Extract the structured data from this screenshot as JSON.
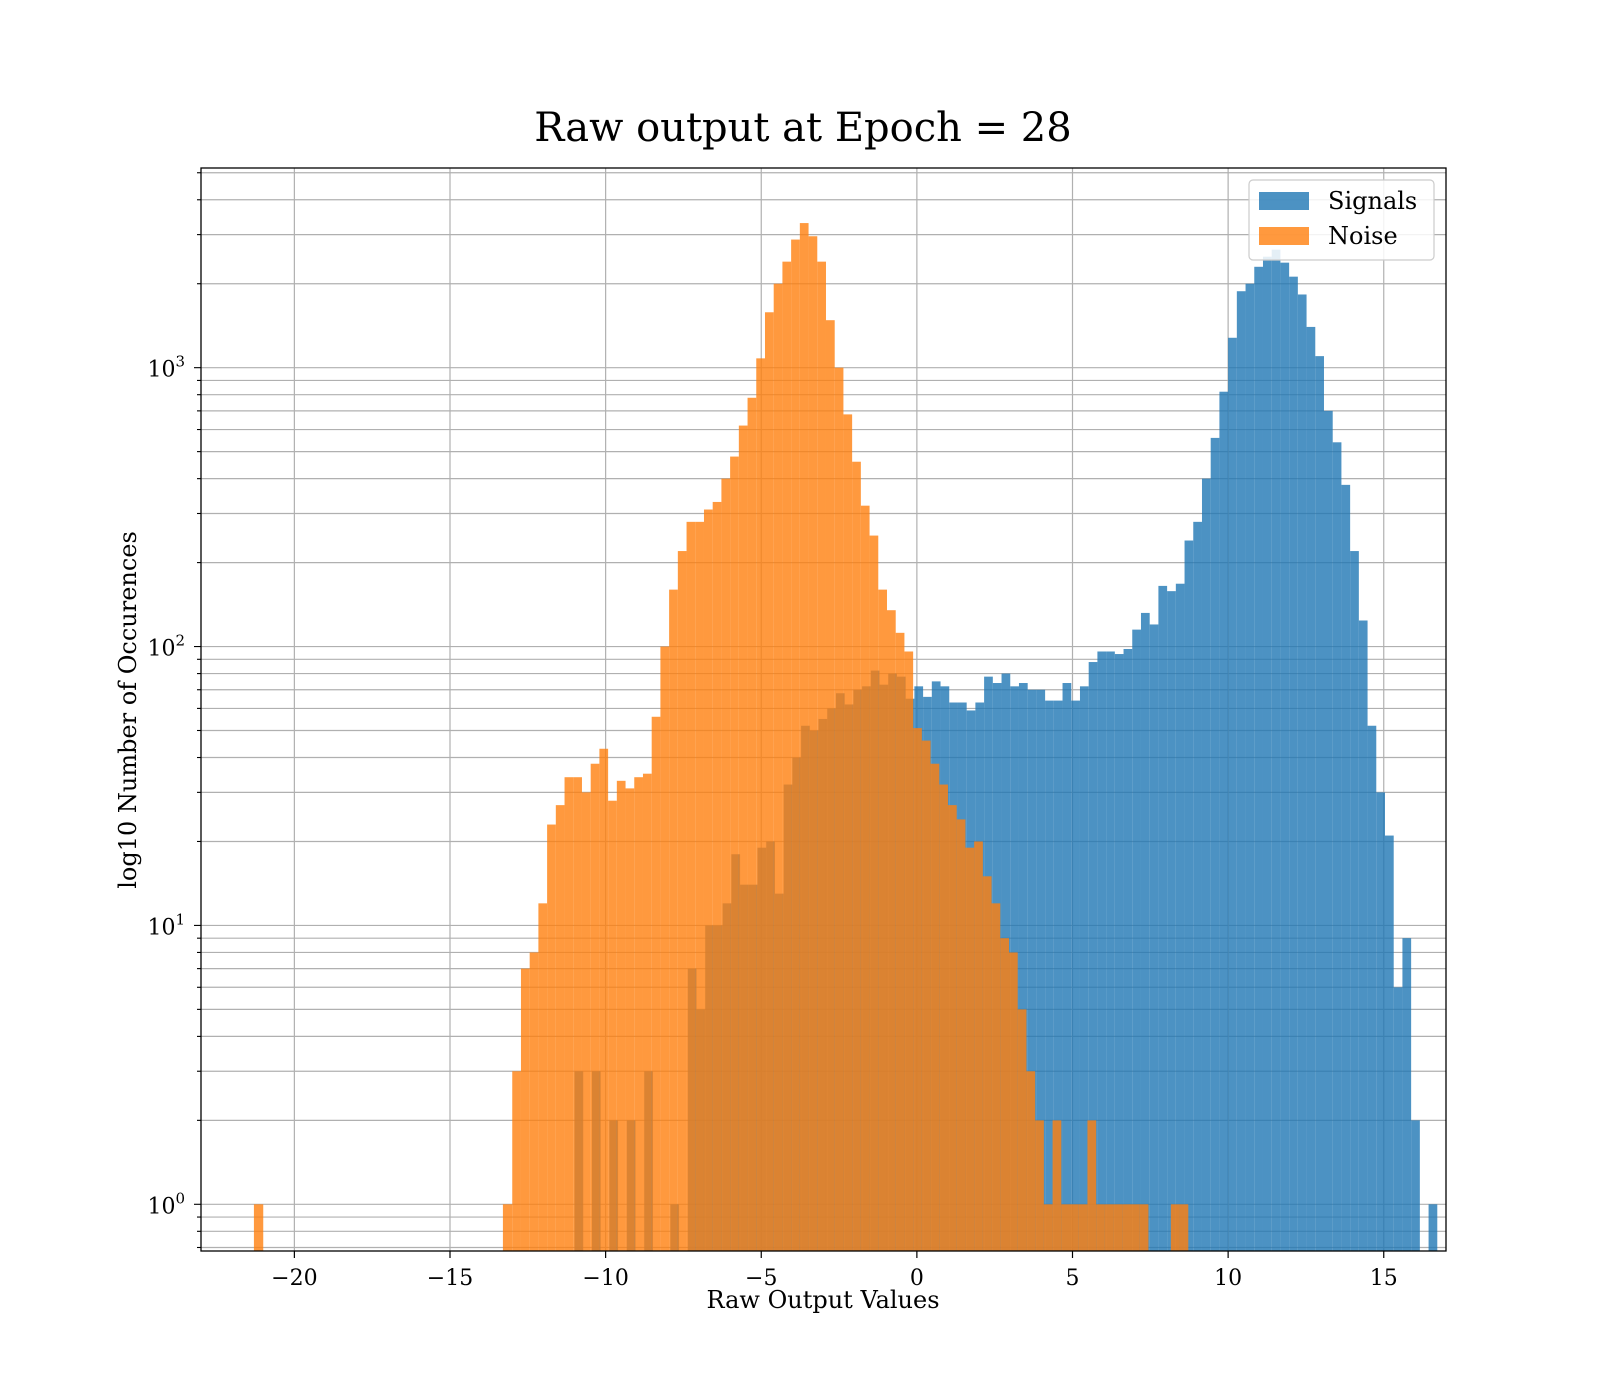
{
  "chart_data": {
    "type": "bar",
    "title": "Raw output at Epoch = 28",
    "xlabel": "Raw Output Values",
    "ylabel": "log10 Number of Occurences",
    "xlim": [
      -23,
      17
    ],
    "ylim": [
      0.68,
      5200
    ],
    "yscale": "log",
    "grid": true,
    "legend_position": "top-right",
    "x_ticks": [
      -20,
      -15,
      -10,
      -5,
      0,
      5,
      10,
      15
    ],
    "x_tick_labels": [
      "−20",
      "−15",
      "−10",
      "−5",
      "0",
      "5",
      "10",
      "15"
    ],
    "y_ticks": [
      {
        "value": 1,
        "base": "10",
        "exp": "0"
      },
      {
        "value": 10,
        "base": "10",
        "exp": "1"
      },
      {
        "value": 100,
        "base": "10",
        "exp": "2"
      },
      {
        "value": 1000,
        "base": "10",
        "exp": "3"
      }
    ],
    "series": [
      {
        "name": "Signals",
        "color": "#1f77b4",
        "opacity": 0.8,
        "bins": [
          [
            -11.0,
            -10.72,
            3
          ],
          [
            -10.44,
            -10.16,
            3
          ],
          [
            -9.88,
            -9.6,
            2
          ],
          [
            -9.32,
            -9.04,
            2
          ],
          [
            -8.76,
            -8.48,
            3
          ],
          [
            -7.92,
            -7.64,
            1
          ],
          [
            -7.36,
            -7.08,
            7
          ],
          [
            -7.08,
            -6.8,
            5
          ],
          [
            -6.8,
            -6.52,
            10
          ],
          [
            -6.52,
            -6.24,
            10
          ],
          [
            -6.24,
            -5.96,
            12
          ],
          [
            -5.96,
            -5.68,
            18
          ],
          [
            -5.68,
            -5.4,
            14
          ],
          [
            -5.4,
            -5.12,
            14
          ],
          [
            -5.12,
            -4.84,
            19
          ],
          [
            -4.84,
            -4.56,
            20
          ],
          [
            -4.56,
            -4.28,
            13
          ],
          [
            -4.28,
            -4.0,
            32
          ],
          [
            -4.0,
            -3.72,
            40
          ],
          [
            -3.72,
            -3.44,
            52
          ],
          [
            -3.44,
            -3.16,
            50
          ],
          [
            -3.16,
            -2.88,
            55
          ],
          [
            -2.88,
            -2.6,
            60
          ],
          [
            -2.6,
            -2.32,
            68
          ],
          [
            -2.32,
            -2.04,
            62
          ],
          [
            -2.04,
            -1.76,
            70
          ],
          [
            -1.76,
            -1.48,
            72
          ],
          [
            -1.48,
            -1.2,
            82
          ],
          [
            -1.2,
            -0.92,
            73
          ],
          [
            -0.92,
            -0.64,
            80
          ],
          [
            -0.64,
            -0.36,
            78
          ],
          [
            -0.36,
            -0.08,
            65
          ],
          [
            -0.08,
            0.2,
            72
          ],
          [
            0.2,
            0.48,
            66
          ],
          [
            0.48,
            0.76,
            75
          ],
          [
            0.76,
            1.04,
            72
          ],
          [
            1.04,
            1.32,
            63
          ],
          [
            1.32,
            1.6,
            63
          ],
          [
            1.6,
            1.88,
            59
          ],
          [
            1.88,
            2.16,
            63
          ],
          [
            2.16,
            2.44,
            78
          ],
          [
            2.44,
            2.72,
            74
          ],
          [
            2.72,
            3.0,
            80
          ],
          [
            3.0,
            3.28,
            72
          ],
          [
            3.28,
            3.56,
            74
          ],
          [
            3.56,
            3.84,
            70
          ],
          [
            3.84,
            4.12,
            70
          ],
          [
            4.12,
            4.4,
            64
          ],
          [
            4.4,
            4.68,
            64
          ],
          [
            4.68,
            4.96,
            74
          ],
          [
            4.96,
            5.24,
            64
          ],
          [
            5.24,
            5.52,
            72
          ],
          [
            5.52,
            5.8,
            88
          ],
          [
            5.8,
            6.08,
            96
          ],
          [
            6.08,
            6.36,
            96
          ],
          [
            6.36,
            6.64,
            94
          ],
          [
            6.64,
            6.92,
            98
          ],
          [
            6.92,
            7.2,
            115
          ],
          [
            7.2,
            7.48,
            132
          ],
          [
            7.48,
            7.76,
            120
          ],
          [
            7.76,
            8.04,
            165
          ],
          [
            8.04,
            8.32,
            158
          ],
          [
            8.32,
            8.6,
            168
          ],
          [
            8.6,
            8.88,
            240
          ],
          [
            8.88,
            9.16,
            280
          ],
          [
            9.16,
            9.44,
            400
          ],
          [
            9.44,
            9.72,
            560
          ],
          [
            9.72,
            10.0,
            820
          ],
          [
            10.0,
            10.28,
            1280
          ],
          [
            10.28,
            10.56,
            1880
          ],
          [
            10.56,
            10.84,
            2000
          ],
          [
            10.84,
            11.12,
            2300
          ],
          [
            11.12,
            11.4,
            2500
          ],
          [
            11.4,
            11.68,
            2650
          ],
          [
            11.68,
            11.96,
            2380
          ],
          [
            11.96,
            12.24,
            2120
          ],
          [
            12.24,
            12.52,
            1830
          ],
          [
            12.52,
            12.8,
            1400
          ],
          [
            12.8,
            13.08,
            1100
          ],
          [
            13.08,
            13.36,
            700
          ],
          [
            13.36,
            13.64,
            540
          ],
          [
            13.64,
            13.92,
            380
          ],
          [
            13.92,
            14.2,
            220
          ],
          [
            14.2,
            14.48,
            124
          ],
          [
            14.48,
            14.76,
            52
          ],
          [
            14.76,
            15.04,
            30
          ],
          [
            15.04,
            15.32,
            21
          ],
          [
            15.32,
            15.6,
            6
          ],
          [
            15.6,
            15.88,
            9
          ],
          [
            15.88,
            16.16,
            2
          ],
          [
            16.44,
            16.72,
            1
          ]
        ]
      },
      {
        "name": "Noise",
        "color": "#ff7f0e",
        "opacity": 0.8,
        "bins": [
          [
            -21.3,
            -21.0,
            1
          ],
          [
            -13.3,
            -13.0,
            1
          ],
          [
            -13.0,
            -12.72,
            3
          ],
          [
            -12.72,
            -12.44,
            7
          ],
          [
            -12.44,
            -12.16,
            8
          ],
          [
            -12.16,
            -11.88,
            12
          ],
          [
            -11.88,
            -11.6,
            23
          ],
          [
            -11.6,
            -11.32,
            27
          ],
          [
            -11.32,
            -11.04,
            34
          ],
          [
            -11.04,
            -10.76,
            34
          ],
          [
            -10.76,
            -10.48,
            30
          ],
          [
            -10.48,
            -10.2,
            38
          ],
          [
            -10.2,
            -9.92,
            43
          ],
          [
            -9.92,
            -9.64,
            28
          ],
          [
            -9.64,
            -9.36,
            33
          ],
          [
            -9.36,
            -9.08,
            31
          ],
          [
            -9.08,
            -8.8,
            34
          ],
          [
            -8.8,
            -8.52,
            35
          ],
          [
            -8.52,
            -8.24,
            56
          ],
          [
            -8.24,
            -7.96,
            100
          ],
          [
            -7.96,
            -7.68,
            160
          ],
          [
            -7.68,
            -7.4,
            220
          ],
          [
            -7.4,
            -7.12,
            280
          ],
          [
            -7.12,
            -6.84,
            280
          ],
          [
            -6.84,
            -6.56,
            310
          ],
          [
            -6.56,
            -6.28,
            330
          ],
          [
            -6.28,
            -6.0,
            400
          ],
          [
            -6.0,
            -5.72,
            480
          ],
          [
            -5.72,
            -5.44,
            620
          ],
          [
            -5.44,
            -5.16,
            780
          ],
          [
            -5.16,
            -4.88,
            1080
          ],
          [
            -4.88,
            -4.6,
            1580
          ],
          [
            -4.6,
            -4.32,
            2000
          ],
          [
            -4.32,
            -4.04,
            2400
          ],
          [
            -4.04,
            -3.76,
            2880
          ],
          [
            -3.76,
            -3.48,
            3300
          ],
          [
            -3.48,
            -3.2,
            2960
          ],
          [
            -3.2,
            -2.92,
            2400
          ],
          [
            -2.92,
            -2.64,
            1480
          ],
          [
            -2.64,
            -2.36,
            1000
          ],
          [
            -2.36,
            -2.08,
            680
          ],
          [
            -2.08,
            -1.8,
            460
          ],
          [
            -1.8,
            -1.52,
            320
          ],
          [
            -1.52,
            -1.24,
            250
          ],
          [
            -1.24,
            -0.96,
            160
          ],
          [
            -0.96,
            -0.68,
            135
          ],
          [
            -0.68,
            -0.4,
            112
          ],
          [
            -0.4,
            -0.12,
            96
          ],
          [
            -0.12,
            0.16,
            51
          ],
          [
            0.16,
            0.44,
            46
          ],
          [
            0.44,
            0.72,
            38
          ],
          [
            0.72,
            1.0,
            32
          ],
          [
            1.0,
            1.28,
            27
          ],
          [
            1.28,
            1.56,
            24
          ],
          [
            1.56,
            1.84,
            19
          ],
          [
            1.84,
            2.12,
            20
          ],
          [
            2.12,
            2.4,
            15
          ],
          [
            2.4,
            2.68,
            12
          ],
          [
            2.68,
            2.96,
            9
          ],
          [
            2.96,
            3.24,
            8
          ],
          [
            3.24,
            3.52,
            5
          ],
          [
            3.52,
            3.8,
            3
          ],
          [
            3.8,
            4.08,
            2
          ],
          [
            4.08,
            4.36,
            1
          ],
          [
            4.36,
            4.64,
            2
          ],
          [
            4.64,
            4.92,
            1
          ],
          [
            4.92,
            5.2,
            1
          ],
          [
            5.2,
            5.48,
            1
          ],
          [
            5.48,
            5.76,
            2
          ],
          [
            5.76,
            6.04,
            1
          ],
          [
            6.04,
            6.32,
            1
          ],
          [
            6.32,
            6.6,
            1
          ],
          [
            6.6,
            6.88,
            1
          ],
          [
            6.88,
            7.16,
            1
          ],
          [
            7.16,
            7.44,
            1
          ],
          [
            8.16,
            8.44,
            1
          ],
          [
            8.44,
            8.72,
            1
          ]
        ]
      }
    ]
  }
}
